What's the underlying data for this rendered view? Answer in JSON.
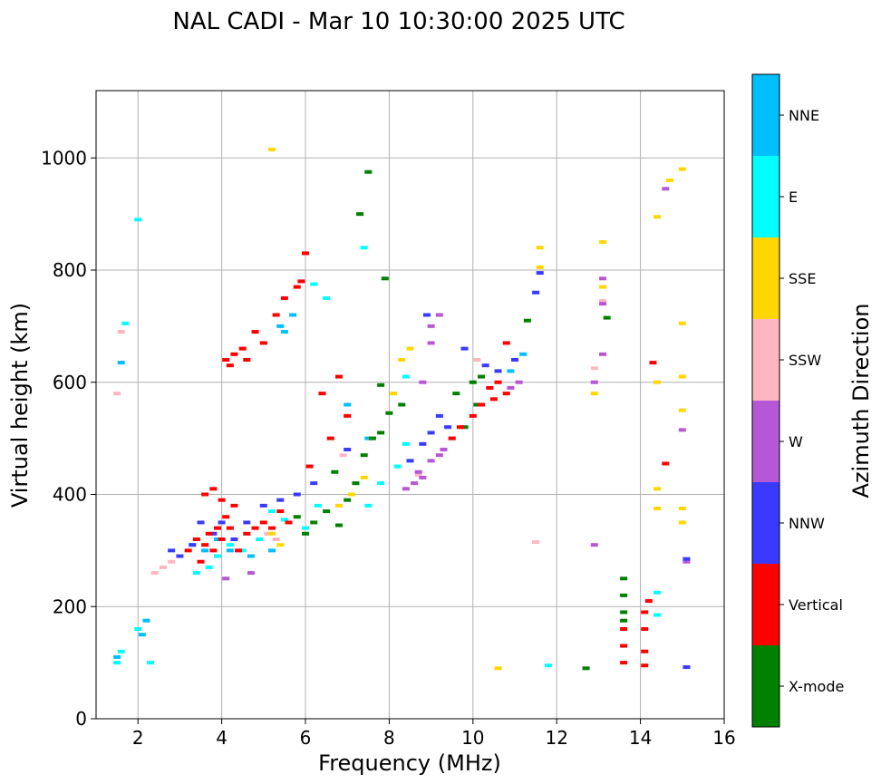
{
  "chart_data": {
    "type": "scatter",
    "title": "NAL CADI - Mar 10 10:30:00 2025 UTC",
    "xlabel": "Frequency (MHz)",
    "ylabel": "Virtual height (km)",
    "xlim": [
      1,
      16
    ],
    "ylim": [
      0,
      1120
    ],
    "xticks": [
      2,
      4,
      6,
      8,
      10,
      12,
      14,
      16
    ],
    "yticks": [
      0,
      200,
      400,
      600,
      800,
      1000
    ],
    "grid": true,
    "colorbar": {
      "label": "Azimuth Direction",
      "categories": [
        "X-mode",
        "Vertical",
        "NNW",
        "W",
        "SSW",
        "SSE",
        "E",
        "NNE"
      ],
      "colors": [
        "#008000",
        "#ff0000",
        "#3a3aff",
        "#b657d5",
        "#ffb6c1",
        "#ffd700",
        "#00ffff",
        "#00bfff"
      ]
    },
    "series": [
      {
        "name": "Vertical",
        "points": [
          [
            3.2,
            300
          ],
          [
            3.4,
            320
          ],
          [
            3.5,
            280
          ],
          [
            3.6,
            310
          ],
          [
            3.7,
            330
          ],
          [
            3.8,
            300
          ],
          [
            3.9,
            340
          ],
          [
            4.0,
            320
          ],
          [
            4.1,
            360
          ],
          [
            4.2,
            340
          ],
          [
            4.3,
            380
          ],
          [
            4.4,
            300
          ],
          [
            4.6,
            330
          ],
          [
            4.8,
            340
          ],
          [
            5.0,
            350
          ],
          [
            5.2,
            340
          ],
          [
            5.4,
            370
          ],
          [
            5.6,
            350
          ],
          [
            3.8,
            410
          ],
          [
            4.0,
            390
          ],
          [
            3.6,
            400
          ],
          [
            4.1,
            640
          ],
          [
            4.2,
            630
          ],
          [
            4.3,
            650
          ],
          [
            4.5,
            660
          ],
          [
            4.6,
            640
          ],
          [
            4.8,
            690
          ],
          [
            5.0,
            670
          ],
          [
            5.3,
            720
          ],
          [
            5.5,
            750
          ],
          [
            5.8,
            770
          ],
          [
            6.0,
            830
          ],
          [
            6.4,
            580
          ],
          [
            6.6,
            500
          ],
          [
            6.8,
            610
          ],
          [
            7.0,
            540
          ],
          [
            9.5,
            500
          ],
          [
            9.7,
            520
          ],
          [
            10.0,
            540
          ],
          [
            10.2,
            560
          ],
          [
            10.4,
            590
          ],
          [
            10.5,
            570
          ],
          [
            10.6,
            600
          ],
          [
            10.8,
            580
          ],
          [
            13.6,
            100
          ],
          [
            13.6,
            130
          ],
          [
            13.6,
            160
          ],
          [
            14.1,
            95
          ],
          [
            14.1,
            120
          ],
          [
            14.1,
            160
          ],
          [
            14.1,
            190
          ],
          [
            14.2,
            210
          ],
          [
            14.3,
            635
          ],
          [
            14.6,
            455
          ],
          [
            10.8,
            670
          ],
          [
            6.1,
            450
          ],
          [
            5.9,
            780
          ]
        ]
      },
      {
        "name": "X-mode",
        "points": [
          [
            5.8,
            360
          ],
          [
            6.0,
            330
          ],
          [
            6.2,
            350
          ],
          [
            6.5,
            370
          ],
          [
            6.8,
            345
          ],
          [
            7.0,
            390
          ],
          [
            7.2,
            420
          ],
          [
            7.4,
            470
          ],
          [
            7.6,
            500
          ],
          [
            7.8,
            510
          ],
          [
            8.0,
            545
          ],
          [
            8.3,
            560
          ],
          [
            9.6,
            580
          ],
          [
            9.8,
            520
          ],
          [
            10.0,
            600
          ],
          [
            10.1,
            560
          ],
          [
            10.2,
            610
          ],
          [
            13.6,
            190
          ],
          [
            13.6,
            220
          ],
          [
            13.6,
            175
          ],
          [
            13.6,
            250
          ],
          [
            7.3,
            900
          ],
          [
            7.5,
            975
          ],
          [
            7.9,
            785
          ],
          [
            7.8,
            595
          ],
          [
            11.3,
            710
          ],
          [
            12.7,
            90
          ],
          [
            13.2,
            715
          ],
          [
            6.7,
            440
          ]
        ]
      },
      {
        "name": "NNW",
        "points": [
          [
            2.8,
            300
          ],
          [
            3.0,
            290
          ],
          [
            3.3,
            310
          ],
          [
            3.5,
            350
          ],
          [
            3.8,
            330
          ],
          [
            4.0,
            350
          ],
          [
            4.3,
            320
          ],
          [
            4.6,
            350
          ],
          [
            5.0,
            380
          ],
          [
            5.4,
            390
          ],
          [
            5.8,
            400
          ],
          [
            6.2,
            420
          ],
          [
            8.5,
            460
          ],
          [
            8.8,
            490
          ],
          [
            9.0,
            510
          ],
          [
            9.2,
            540
          ],
          [
            9.4,
            520
          ],
          [
            10.3,
            630
          ],
          [
            10.6,
            620
          ],
          [
            11.0,
            640
          ],
          [
            11.5,
            760
          ],
          [
            11.6,
            795
          ],
          [
            15.1,
            285
          ],
          [
            15.1,
            92
          ],
          [
            9.8,
            660
          ],
          [
            7.0,
            480
          ],
          [
            8.9,
            720
          ]
        ]
      },
      {
        "name": "W",
        "points": [
          [
            8.4,
            410
          ],
          [
            8.6,
            420
          ],
          [
            8.7,
            440
          ],
          [
            8.8,
            430
          ],
          [
            9.0,
            460
          ],
          [
            9.2,
            470
          ],
          [
            9.3,
            480
          ],
          [
            9.5,
            500
          ],
          [
            9.0,
            700
          ],
          [
            9.2,
            720
          ],
          [
            9.0,
            670
          ],
          [
            8.8,
            600
          ],
          [
            13.1,
            785
          ],
          [
            13.1,
            740
          ],
          [
            13.1,
            650
          ],
          [
            12.9,
            600
          ],
          [
            12.9,
            310
          ],
          [
            14.6,
            945
          ],
          [
            15.0,
            515
          ],
          [
            15.1,
            280
          ],
          [
            4.7,
            260
          ],
          [
            4.1,
            250
          ],
          [
            11.1,
            600
          ],
          [
            10.9,
            590
          ]
        ]
      },
      {
        "name": "SSW",
        "points": [
          [
            2.4,
            260
          ],
          [
            2.6,
            270
          ],
          [
            2.8,
            280
          ],
          [
            5.1,
            330
          ],
          [
            5.3,
            320
          ],
          [
            6.9,
            470
          ],
          [
            13.1,
            745
          ],
          [
            12.9,
            625
          ],
          [
            11.5,
            315
          ],
          [
            1.5,
            580
          ],
          [
            1.6,
            690
          ],
          [
            14.7,
            960
          ],
          [
            8.7,
            435
          ],
          [
            10.1,
            640
          ]
        ]
      },
      {
        "name": "SSE",
        "points": [
          [
            5.2,
            330
          ],
          [
            5.4,
            310
          ],
          [
            6.8,
            380
          ],
          [
            7.1,
            400
          ],
          [
            7.4,
            430
          ],
          [
            8.1,
            580
          ],
          [
            8.3,
            640
          ],
          [
            8.5,
            660
          ],
          [
            13.1,
            770
          ],
          [
            13.1,
            850
          ],
          [
            12.9,
            580
          ],
          [
            14.4,
            895
          ],
          [
            14.4,
            600
          ],
          [
            14.4,
            375
          ],
          [
            14.7,
            960
          ],
          [
            15.0,
            980
          ],
          [
            15.0,
            610
          ],
          [
            15.0,
            705
          ],
          [
            15.0,
            550
          ],
          [
            15.0,
            375
          ],
          [
            15.0,
            350
          ],
          [
            11.6,
            840
          ],
          [
            11.6,
            805
          ],
          [
            10.6,
            90
          ],
          [
            5.2,
            1015
          ],
          [
            14.4,
            410
          ]
        ]
      },
      {
        "name": "E",
        "points": [
          [
            3.4,
            260
          ],
          [
            3.7,
            270
          ],
          [
            3.9,
            290
          ],
          [
            4.2,
            310
          ],
          [
            4.5,
            300
          ],
          [
            4.9,
            320
          ],
          [
            5.2,
            370
          ],
          [
            5.5,
            355
          ],
          [
            6.0,
            340
          ],
          [
            6.3,
            380
          ],
          [
            7.5,
            380
          ],
          [
            7.8,
            420
          ],
          [
            8.2,
            450
          ],
          [
            8.4,
            490
          ],
          [
            1.5,
            100
          ],
          [
            1.6,
            120
          ],
          [
            2.0,
            160
          ],
          [
            2.3,
            100
          ],
          [
            7.4,
            840
          ],
          [
            6.2,
            775
          ],
          [
            6.5,
            750
          ],
          [
            14.4,
            225
          ],
          [
            14.4,
            185
          ],
          [
            11.8,
            95
          ],
          [
            8.4,
            610
          ],
          [
            1.7,
            705
          ],
          [
            2.0,
            890
          ]
        ]
      },
      {
        "name": "NNE",
        "points": [
          [
            3.3,
            310
          ],
          [
            3.6,
            300
          ],
          [
            3.9,
            320
          ],
          [
            4.2,
            300
          ],
          [
            4.7,
            290
          ],
          [
            5.2,
            300
          ],
          [
            5.5,
            690
          ],
          [
            5.7,
            720
          ],
          [
            5.4,
            700
          ],
          [
            7.0,
            560
          ],
          [
            7.5,
            500
          ],
          [
            10.9,
            620
          ],
          [
            11.2,
            650
          ],
          [
            1.5,
            110
          ],
          [
            2.1,
            150
          ],
          [
            2.2,
            175
          ],
          [
            1.6,
            635
          ]
        ]
      }
    ]
  }
}
